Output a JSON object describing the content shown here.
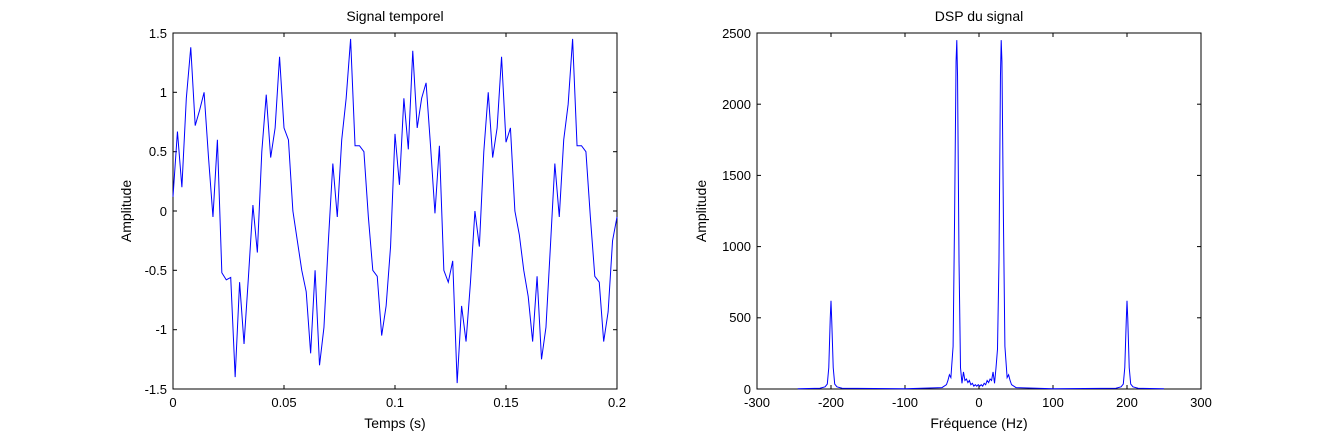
{
  "chart_data": [
    {
      "type": "line",
      "title": "Signal temporel",
      "xlabel": "Temps (s)",
      "ylabel": "Amplitude",
      "xlim": [
        0,
        0.2
      ],
      "ylim": [
        -1.5,
        1.5
      ],
      "xticks": [
        0,
        0.05,
        0.1,
        0.15,
        0.2
      ],
      "xtick_labels": [
        "0",
        "0.05",
        "0.1",
        "0.15",
        "0.2"
      ],
      "yticks": [
        -1.5,
        -1,
        -0.5,
        0,
        0.5,
        1,
        1.5
      ],
      "ytick_labels": [
        "-1.5",
        "-1",
        "-0.5",
        "0",
        "0.5",
        "1",
        "1.5"
      ],
      "grid": false,
      "line_color": "#0000ff",
      "series": [
        {
          "x": [
            0,
            0.002,
            0.004,
            0.006,
            0.008,
            0.01,
            0.012,
            0.014,
            0.016,
            0.018,
            0.02,
            0.022,
            0.024,
            0.026,
            0.028,
            0.03,
            0.032,
            0.034,
            0.036,
            0.038,
            0.04,
            0.042,
            0.044,
            0.046,
            0.048,
            0.05,
            0.052,
            0.054,
            0.056,
            0.058,
            0.06,
            0.062,
            0.064,
            0.066,
            0.068,
            0.07,
            0.072,
            0.074,
            0.076,
            0.078,
            0.08,
            0.082,
            0.084,
            0.086,
            0.088,
            0.09,
            0.092,
            0.094,
            0.096,
            0.098,
            0.1,
            0.102,
            0.104,
            0.106,
            0.108,
            0.11,
            0.112,
            0.114,
            0.116,
            0.118,
            0.12,
            0.122,
            0.124,
            0.126,
            0.128,
            0.13,
            0.132,
            0.134,
            0.136,
            0.138,
            0.14,
            0.142,
            0.144,
            0.146,
            0.148,
            0.15,
            0.152,
            0.154,
            0.156,
            0.158,
            0.16,
            0.162,
            0.164,
            0.166,
            0.168,
            0.17,
            0.172,
            0.174,
            0.176,
            0.178,
            0.18,
            0.182,
            0.184,
            0.186,
            0.188,
            0.19,
            0.192,
            0.194,
            0.196,
            0.198,
            0.2
          ],
          "y": [
            0.12,
            0.67,
            0.2,
            0.95,
            1.38,
            0.72,
            0.85,
            1.0,
            0.45,
            -0.05,
            0.6,
            -0.52,
            -0.58,
            -0.56,
            -1.4,
            -0.6,
            -1.12,
            -0.55,
            0.05,
            -0.35,
            0.5,
            0.98,
            0.45,
            0.7,
            1.3,
            0.7,
            0.6,
            0.0,
            -0.25,
            -0.5,
            -0.68,
            -1.2,
            -0.5,
            -1.3,
            -0.98,
            -0.25,
            0.4,
            -0.05,
            0.6,
            0.95,
            1.45,
            0.55,
            0.55,
            0.5,
            -0.05,
            -0.5,
            -0.55,
            -1.05,
            -0.8,
            -0.3,
            0.65,
            0.22,
            0.95,
            0.52,
            1.35,
            0.7,
            0.95,
            1.08,
            0.55,
            -0.02,
            0.55,
            -0.5,
            -0.6,
            -0.42,
            -1.45,
            -0.8,
            -1.1,
            -0.6,
            0.0,
            -0.3,
            0.5,
            1.0,
            0.45,
            0.7,
            1.3,
            0.58,
            0.7,
            0.0,
            -0.2,
            -0.5,
            -0.72,
            -1.1,
            -0.55,
            -1.25,
            -0.98,
            -0.3,
            0.4,
            -0.05,
            0.6,
            0.9,
            1.45,
            0.55,
            0.55,
            0.5,
            -0.05,
            -0.55,
            -0.6,
            -1.1,
            -0.85,
            -0.25,
            -0.05
          ]
        }
      ]
    },
    {
      "type": "line",
      "title": "DSP du signal",
      "xlabel": "Fréquence (Hz)",
      "ylabel": "Amplitude",
      "xlim": [
        -300,
        300
      ],
      "ylim": [
        0,
        2500
      ],
      "xticks": [
        -300,
        -200,
        -100,
        0,
        100,
        200,
        300
      ],
      "xtick_labels": [
        "-300",
        "-200",
        "-100",
        "0",
        "100",
        "200",
        "300"
      ],
      "yticks": [
        0,
        500,
        1000,
        1500,
        2000,
        2500
      ],
      "ytick_labels": [
        "0",
        "500",
        "1000",
        "1500",
        "2000",
        "2500"
      ],
      "grid": false,
      "line_color": "#0000ff",
      "series": [
        {
          "x": [
            -245,
            -215,
            -208,
            -205,
            -203,
            -201,
            -200,
            -199,
            -197,
            -195,
            -192,
            -185,
            -100,
            -50,
            -44,
            -42,
            -40,
            -38,
            -35,
            -33,
            -31,
            -30,
            -29,
            -27,
            -25,
            -23,
            -21,
            -19,
            -17,
            -15,
            -13,
            -11,
            -9,
            -7,
            -5,
            -3,
            -1,
            1,
            3,
            5,
            7,
            9,
            11,
            13,
            15,
            17,
            19,
            21,
            23,
            25,
            27,
            29,
            30,
            31,
            33,
            35,
            38,
            40,
            42,
            44,
            50,
            100,
            185,
            192,
            195,
            197,
            199,
            200,
            201,
            203,
            205,
            208,
            215,
            250
          ],
          "y": [
            2,
            5,
            15,
            35,
            150,
            500,
            620,
            480,
            150,
            35,
            15,
            5,
            2,
            10,
            30,
            60,
            100,
            80,
            300,
            1200,
            2300,
            2450,
            2200,
            900,
            150,
            40,
            120,
            60,
            70,
            45,
            60,
            30,
            40,
            20,
            30,
            20,
            30,
            20,
            30,
            20,
            40,
            30,
            60,
            45,
            70,
            60,
            120,
            40,
            150,
            280,
            900,
            2200,
            2450,
            2300,
            1200,
            300,
            80,
            100,
            60,
            30,
            10,
            2,
            5,
            15,
            35,
            150,
            480,
            620,
            500,
            150,
            35,
            15,
            5,
            2
          ]
        }
      ]
    }
  ]
}
